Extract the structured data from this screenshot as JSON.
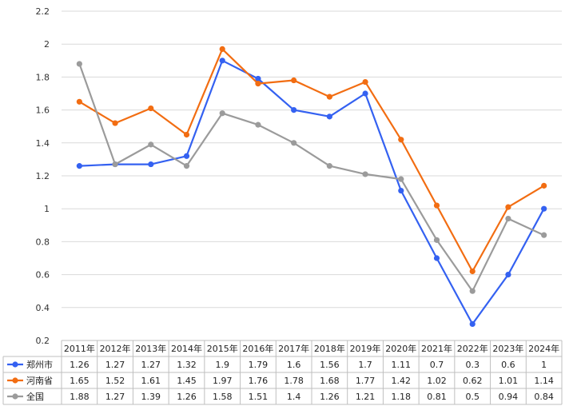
{
  "chart_data": {
    "type": "line",
    "title": "",
    "xlabel": "",
    "ylabel": "",
    "ylim": [
      0.2,
      2.2
    ],
    "yticks": [
      "0.2",
      "0.4",
      "0.6",
      "0.8",
      "1",
      "1.2",
      "1.4",
      "1.6",
      "1.8",
      "2",
      "2.2"
    ],
    "grid": true,
    "legend": "data-table-left",
    "categories": [
      "2011年",
      "2012年",
      "2013年",
      "2014年",
      "2015年",
      "2016年",
      "2017年",
      "2018年",
      "2019年",
      "2020年",
      "2021年",
      "2022年",
      "2023年",
      "2024年"
    ],
    "series": [
      {
        "name": "郑州市",
        "color": "#3461f1",
        "values": [
          1.26,
          1.27,
          1.27,
          1.32,
          1.9,
          1.79,
          1.6,
          1.56,
          1.7,
          1.11,
          0.7,
          0.3,
          0.6,
          1
        ],
        "labels": [
          "1.26",
          "1.27",
          "1.27",
          "1.32",
          "1.9",
          "1.79",
          "1.6",
          "1.56",
          "1.7",
          "1.11",
          "0.7",
          "0.3",
          "0.6",
          "1"
        ]
      },
      {
        "name": "河南省",
        "color": "#f26d12",
        "values": [
          1.65,
          1.52,
          1.61,
          1.45,
          1.97,
          1.76,
          1.78,
          1.68,
          1.77,
          1.42,
          1.02,
          0.62,
          1.01,
          1.14
        ],
        "labels": [
          "1.65",
          "1.52",
          "1.61",
          "1.45",
          "1.97",
          "1.76",
          "1.78",
          "1.68",
          "1.77",
          "1.42",
          "1.02",
          "0.62",
          "1.01",
          "1.14"
        ]
      },
      {
        "name": "全国",
        "color": "#9b9b9b",
        "values": [
          1.88,
          1.27,
          1.39,
          1.26,
          1.58,
          1.51,
          1.4,
          1.26,
          1.21,
          1.18,
          0.81,
          0.5,
          0.94,
          0.84
        ],
        "labels": [
          "1.88",
          "1.27",
          "1.39",
          "1.26",
          "1.58",
          "1.51",
          "1.4",
          "1.26",
          "1.21",
          "1.18",
          "0.81",
          "0.5",
          "0.94",
          "0.84"
        ]
      }
    ]
  }
}
